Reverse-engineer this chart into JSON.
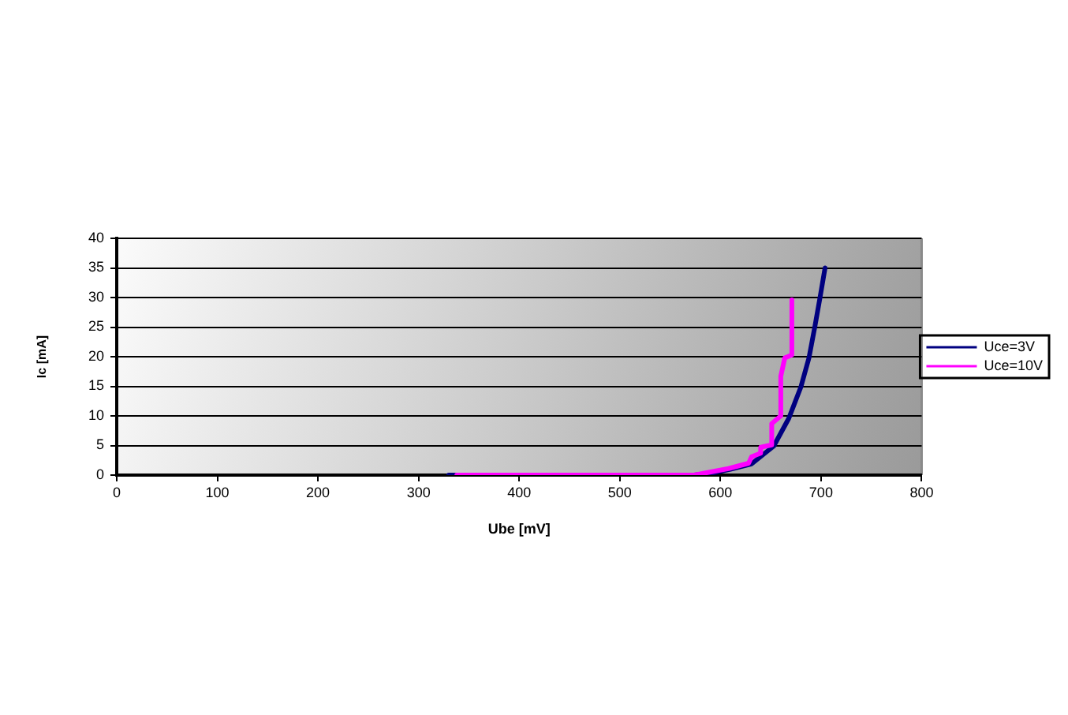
{
  "chart_data": {
    "type": "line",
    "xlabel": "Ube [mV]",
    "ylabel": "Ic [mA]",
    "series": [
      {
        "name": "Uce=3V",
        "color": "#000080",
        "x": [
          330,
          574,
          591,
          610,
          631,
          653,
          668,
          680,
          688,
          694,
          699,
          704
        ],
        "values": [
          0,
          0,
          0.3,
          1,
          1.9,
          4.9,
          9.6,
          14.9,
          19.8,
          25.2,
          30,
          35
        ]
      },
      {
        "name": "Uce=10V",
        "color": "#ff00ff",
        "x": [
          338,
          574,
          608,
          628,
          631,
          640,
          640,
          651,
          651,
          660,
          660,
          664,
          671,
          671
        ],
        "values": [
          0,
          0,
          1.1,
          2,
          3.1,
          3.7,
          4.7,
          5.1,
          8.7,
          10,
          16.7,
          19.8,
          20.3,
          29.6
        ]
      }
    ],
    "xlim": [
      0,
      800
    ],
    "ylim": [
      0,
      40
    ],
    "xticks": [
      0,
      100,
      200,
      300,
      400,
      500,
      600,
      700,
      800
    ],
    "yticks": [
      0,
      5,
      10,
      15,
      20,
      25,
      30,
      35,
      40
    ],
    "grid": "y",
    "legend": "right",
    "marker": "none",
    "line_style": "solid"
  }
}
